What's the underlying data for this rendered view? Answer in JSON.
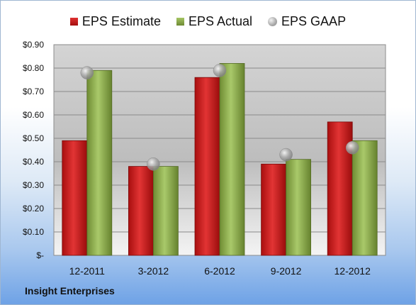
{
  "chart_data": {
    "type": "bar",
    "categories": [
      "12-2011",
      "3-2012",
      "6-2012",
      "9-2012",
      "12-2012"
    ],
    "series": [
      {
        "name": "EPS Estimate",
        "values": [
          0.49,
          0.38,
          0.76,
          0.39,
          0.57
        ],
        "color": "#c81e1e"
      },
      {
        "name": "EPS Actual",
        "values": [
          0.79,
          0.38,
          0.82,
          0.41,
          0.49
        ],
        "color": "#8fae4c"
      },
      {
        "name": "EPS GAAP",
        "values": [
          0.78,
          0.39,
          0.79,
          0.43,
          0.46
        ],
        "color": "#a0a0a0",
        "marker": "circle"
      }
    ],
    "ylim": [
      0,
      0.9
    ],
    "yticks": [
      0,
      0.1,
      0.2,
      0.3,
      0.4,
      0.5,
      0.6,
      0.7,
      0.8,
      0.9
    ],
    "yticklabels": [
      "$-",
      "$0.10",
      "$0.20",
      "$0.30",
      "$0.40",
      "$0.50",
      "$0.60",
      "$0.70",
      "$0.80",
      "$0.90"
    ],
    "grid": true,
    "legend_position": "top"
  },
  "footer": {
    "company": "Insight Enterprises"
  }
}
